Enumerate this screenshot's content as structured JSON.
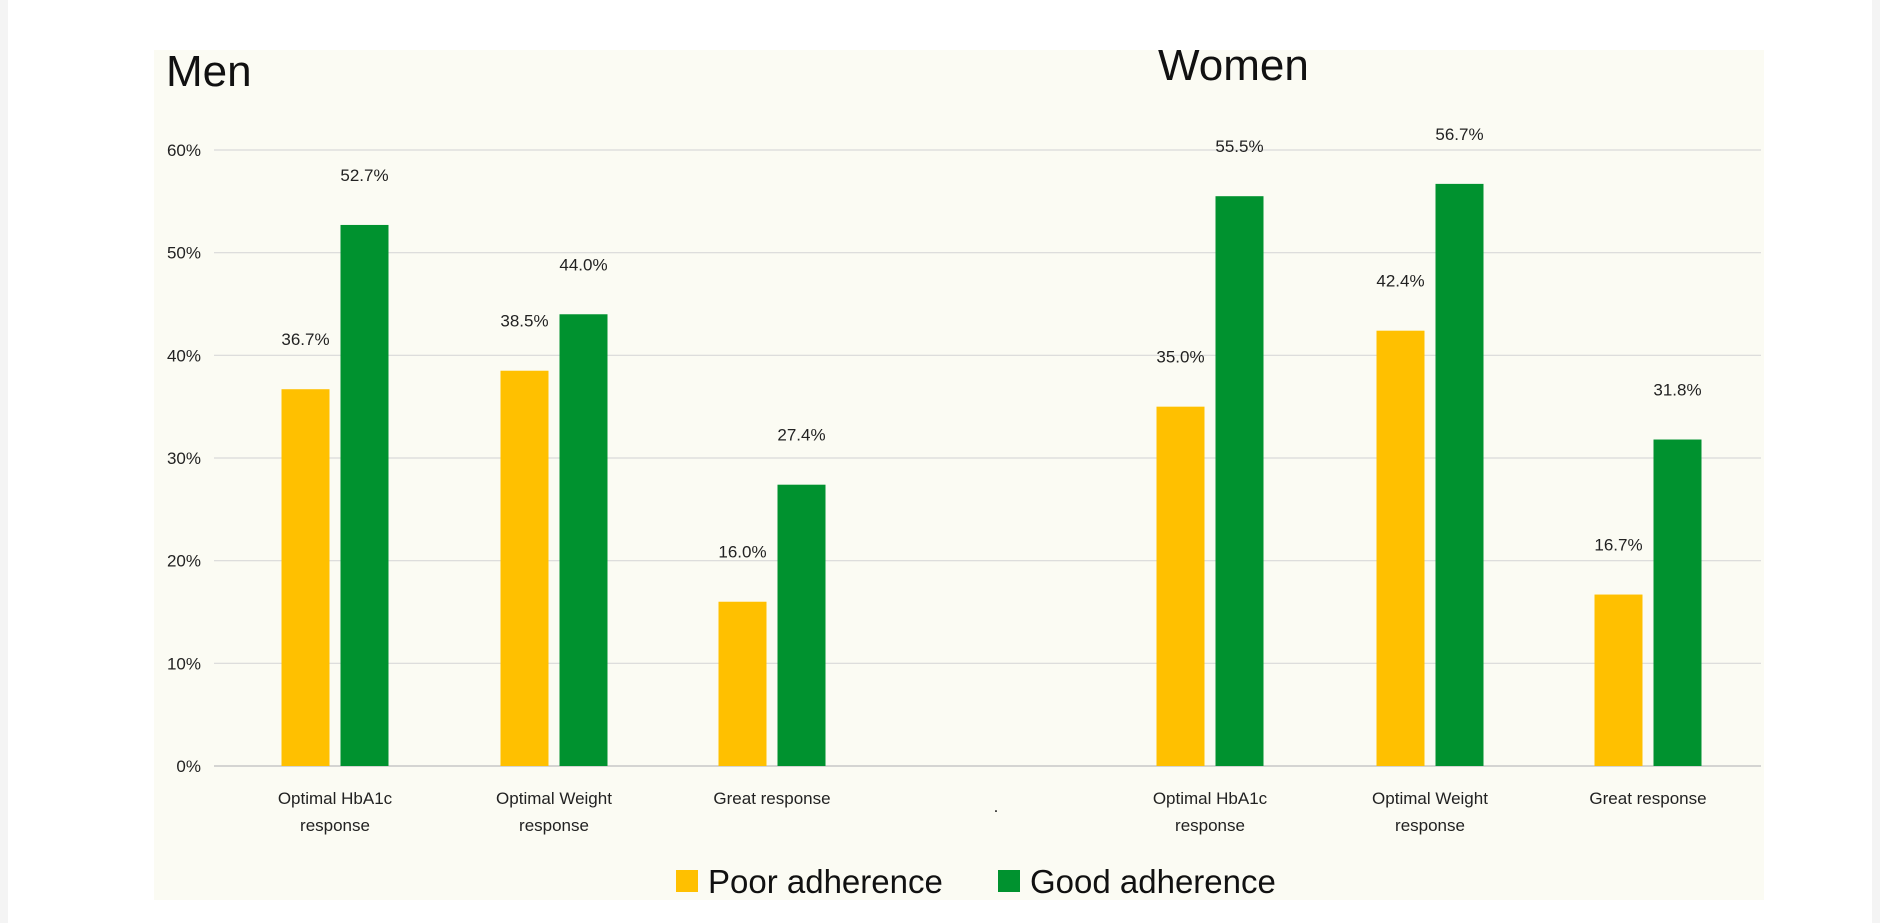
{
  "chart_data": {
    "type": "bar",
    "y_ticks": [
      "0%",
      "10%",
      "20%",
      "30%",
      "40%",
      "50%",
      "60%"
    ],
    "ylim": [
      0,
      60
    ],
    "grid": true,
    "legend_placement": "bottom-center",
    "legend": [
      {
        "name": "Poor adherence",
        "color": "#ffc000"
      },
      {
        "name": "Good adherence",
        "color": "#00922f"
      }
    ],
    "separator_label": ".",
    "panels": [
      {
        "title": "Men",
        "categories": [
          [
            "Optimal HbA1c",
            "response"
          ],
          [
            "Optimal Weight",
            "response"
          ],
          [
            "Great response"
          ]
        ],
        "series": [
          {
            "name": "Poor adherence",
            "values": [
              36.7,
              38.5,
              16.0
            ],
            "labels": [
              "36.7%",
              "38.5%",
              "16.0%"
            ]
          },
          {
            "name": "Good adherence",
            "values": [
              52.7,
              44.0,
              27.4
            ],
            "labels": [
              "52.7%",
              "44.0%",
              "27.4%"
            ]
          }
        ]
      },
      {
        "title": "Women",
        "categories": [
          [
            "Optimal HbA1c",
            "response"
          ],
          [
            "Optimal Weight",
            "response"
          ],
          [
            "Great response"
          ]
        ],
        "series": [
          {
            "name": "Poor adherence",
            "values": [
              35.0,
              42.4,
              16.7
            ],
            "labels": [
              "35.0%",
              "42.4%",
              "16.7%"
            ]
          },
          {
            "name": "Good adherence",
            "values": [
              55.5,
              56.7,
              31.8
            ],
            "labels": [
              "55.5%",
              "56.7%",
              "31.8%"
            ]
          }
        ]
      }
    ]
  }
}
